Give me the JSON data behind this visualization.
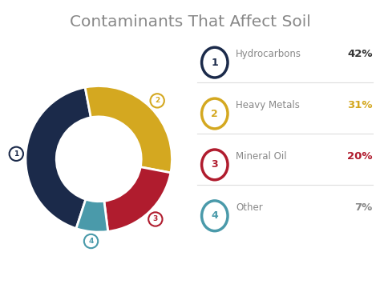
{
  "title": "Contaminants That Affect Soil",
  "title_color": "#888888",
  "background_color": "#ffffff",
  "slices": [
    42,
    31,
    20,
    7
  ],
  "labels": [
    "Hydrocarbons",
    "Heavy Metals",
    "Mineral Oil",
    "Other"
  ],
  "numbers": [
    "42%",
    "31%",
    "20%",
    "7%"
  ],
  "colors": [
    "#1b2a4a",
    "#d4a820",
    "#b01c2e",
    "#4a9aaa"
  ],
  "number_colors": [
    "#333333",
    "#d4a820",
    "#b01c2e",
    "#888888"
  ],
  "legend_circle_colors": [
    "#1b2a4a",
    "#d4a820",
    "#b01c2e",
    "#4a9aaa"
  ],
  "wedge_labels": [
    "1",
    "2",
    "3",
    "4"
  ],
  "donut_width": 0.42,
  "start_angle": 252,
  "counterclock": false
}
